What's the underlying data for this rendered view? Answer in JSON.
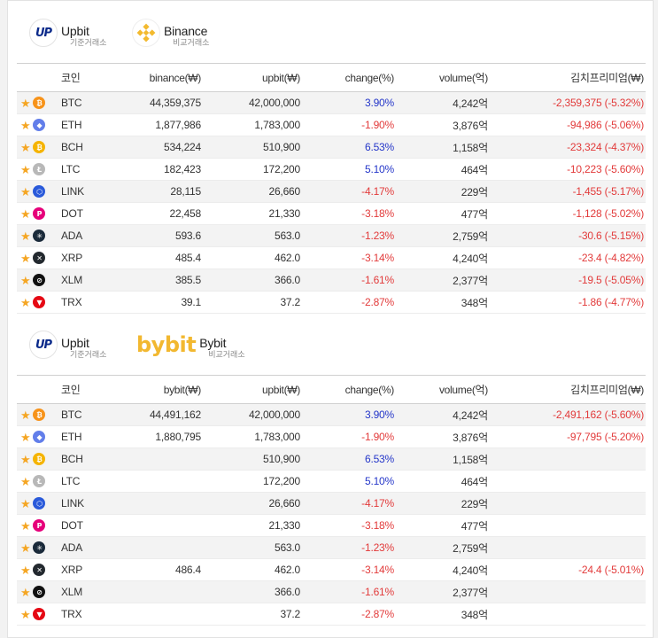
{
  "sections": [
    {
      "base": {
        "name": "Upbit",
        "sub": "기준거래소",
        "logo_text": "UP"
      },
      "compare": {
        "name": "Binance",
        "sub": "비교거래소"
      },
      "headers": {
        "coin": "코인",
        "exchange": "binance(₩)",
        "upbit": "upbit(₩)",
        "change": "change(%)",
        "volume": "volume(억)",
        "premium": "김치프리미엄(₩)"
      },
      "rows": [
        {
          "symbol": "BTC",
          "icon": "bitcoin-icon",
          "color": "#f7931a",
          "glyph": "₿",
          "exchange": "44,359,375",
          "upbit": "42,000,000",
          "change": "3.90%",
          "dir": "up",
          "volume": "4,242억",
          "premium": "-2,359,375 (-5.32%)"
        },
        {
          "symbol": "ETH",
          "icon": "ethereum-icon",
          "color": "#627eea",
          "glyph": "◆",
          "exchange": "1,877,986",
          "upbit": "1,783,000",
          "change": "-1.90%",
          "dir": "down",
          "volume": "3,876억",
          "premium": "-94,986 (-5.06%)"
        },
        {
          "symbol": "BCH",
          "icon": "bitcoin-cash-icon",
          "color": "#f5b400",
          "glyph": "₿",
          "exchange": "534,224",
          "upbit": "510,900",
          "change": "6.53%",
          "dir": "up",
          "volume": "1,158억",
          "premium": "-23,324 (-4.37%)"
        },
        {
          "symbol": "LTC",
          "icon": "litecoin-icon",
          "color": "#b8b8b8",
          "glyph": "Ł",
          "exchange": "182,423",
          "upbit": "172,200",
          "change": "5.10%",
          "dir": "up",
          "volume": "464억",
          "premium": "-10,223 (-5.60%)"
        },
        {
          "symbol": "LINK",
          "icon": "chainlink-icon",
          "color": "#2a5ada",
          "glyph": "⬡",
          "exchange": "28,115",
          "upbit": "26,660",
          "change": "-4.17%",
          "dir": "down",
          "volume": "229억",
          "premium": "-1,455 (-5.17%)"
        },
        {
          "symbol": "DOT",
          "icon": "polkadot-icon",
          "color": "#e6007a",
          "glyph": "P",
          "exchange": "22,458",
          "upbit": "21,330",
          "change": "-3.18%",
          "dir": "down",
          "volume": "477억",
          "premium": "-1,128 (-5.02%)"
        },
        {
          "symbol": "ADA",
          "icon": "cardano-icon",
          "color": "#1a2a3a",
          "glyph": "✳",
          "exchange": "593.6",
          "upbit": "563.0",
          "change": "-1.23%",
          "dir": "down",
          "volume": "2,759억",
          "premium": "-30.6 (-5.15%)"
        },
        {
          "symbol": "XRP",
          "icon": "ripple-icon",
          "color": "#23292f",
          "glyph": "✕",
          "exchange": "485.4",
          "upbit": "462.0",
          "change": "-3.14%",
          "dir": "down",
          "volume": "4,240억",
          "premium": "-23.4 (-4.82%)"
        },
        {
          "symbol": "XLM",
          "icon": "stellar-icon",
          "color": "#111111",
          "glyph": "⊘",
          "exchange": "385.5",
          "upbit": "366.0",
          "change": "-1.61%",
          "dir": "down",
          "volume": "2,377억",
          "premium": "-19.5 (-5.05%)"
        },
        {
          "symbol": "TRX",
          "icon": "tron-icon",
          "color": "#e50914",
          "glyph": "▼",
          "exchange": "39.1",
          "upbit": "37.2",
          "change": "-2.87%",
          "dir": "down",
          "volume": "348억",
          "premium": "-1.86 (-4.77%)"
        }
      ]
    },
    {
      "base": {
        "name": "Upbit",
        "sub": "기준거래소",
        "logo_text": "UP"
      },
      "compare": {
        "name": "Bybit",
        "sub": "비교거래소",
        "logo_text": "bybit"
      },
      "headers": {
        "coin": "코인",
        "exchange": "bybit(₩)",
        "upbit": "upbit(₩)",
        "change": "change(%)",
        "volume": "volume(억)",
        "premium": "김치프리미엄(₩)"
      },
      "rows": [
        {
          "symbol": "BTC",
          "icon": "bitcoin-icon",
          "color": "#f7931a",
          "glyph": "₿",
          "exchange": "44,491,162",
          "upbit": "42,000,000",
          "change": "3.90%",
          "dir": "up",
          "volume": "4,242억",
          "premium": "-2,491,162 (-5.60%)"
        },
        {
          "symbol": "ETH",
          "icon": "ethereum-icon",
          "color": "#627eea",
          "glyph": "◆",
          "exchange": "1,880,795",
          "upbit": "1,783,000",
          "change": "-1.90%",
          "dir": "down",
          "volume": "3,876억",
          "premium": "-97,795 (-5.20%)"
        },
        {
          "symbol": "BCH",
          "icon": "bitcoin-cash-icon",
          "color": "#f5b400",
          "glyph": "₿",
          "exchange": "",
          "upbit": "510,900",
          "change": "6.53%",
          "dir": "up",
          "volume": "1,158억",
          "premium": ""
        },
        {
          "symbol": "LTC",
          "icon": "litecoin-icon",
          "color": "#b8b8b8",
          "glyph": "Ł",
          "exchange": "",
          "upbit": "172,200",
          "change": "5.10%",
          "dir": "up",
          "volume": "464억",
          "premium": ""
        },
        {
          "symbol": "LINK",
          "icon": "chainlink-icon",
          "color": "#2a5ada",
          "glyph": "⬡",
          "exchange": "",
          "upbit": "26,660",
          "change": "-4.17%",
          "dir": "down",
          "volume": "229억",
          "premium": ""
        },
        {
          "symbol": "DOT",
          "icon": "polkadot-icon",
          "color": "#e6007a",
          "glyph": "P",
          "exchange": "",
          "upbit": "21,330",
          "change": "-3.18%",
          "dir": "down",
          "volume": "477억",
          "premium": ""
        },
        {
          "symbol": "ADA",
          "icon": "cardano-icon",
          "color": "#1a2a3a",
          "glyph": "✳",
          "exchange": "",
          "upbit": "563.0",
          "change": "-1.23%",
          "dir": "down",
          "volume": "2,759억",
          "premium": ""
        },
        {
          "symbol": "XRP",
          "icon": "ripple-icon",
          "color": "#23292f",
          "glyph": "✕",
          "exchange": "486.4",
          "upbit": "462.0",
          "change": "-3.14%",
          "dir": "down",
          "volume": "4,240억",
          "premium": "-24.4 (-5.01%)"
        },
        {
          "symbol": "XLM",
          "icon": "stellar-icon",
          "color": "#111111",
          "glyph": "⊘",
          "exchange": "",
          "upbit": "366.0",
          "change": "-1.61%",
          "dir": "down",
          "volume": "2,377억",
          "premium": ""
        },
        {
          "symbol": "TRX",
          "icon": "tron-icon",
          "color": "#e50914",
          "glyph": "▼",
          "exchange": "",
          "upbit": "37.2",
          "change": "-2.87%",
          "dir": "down",
          "volume": "348억",
          "premium": ""
        }
      ]
    }
  ]
}
